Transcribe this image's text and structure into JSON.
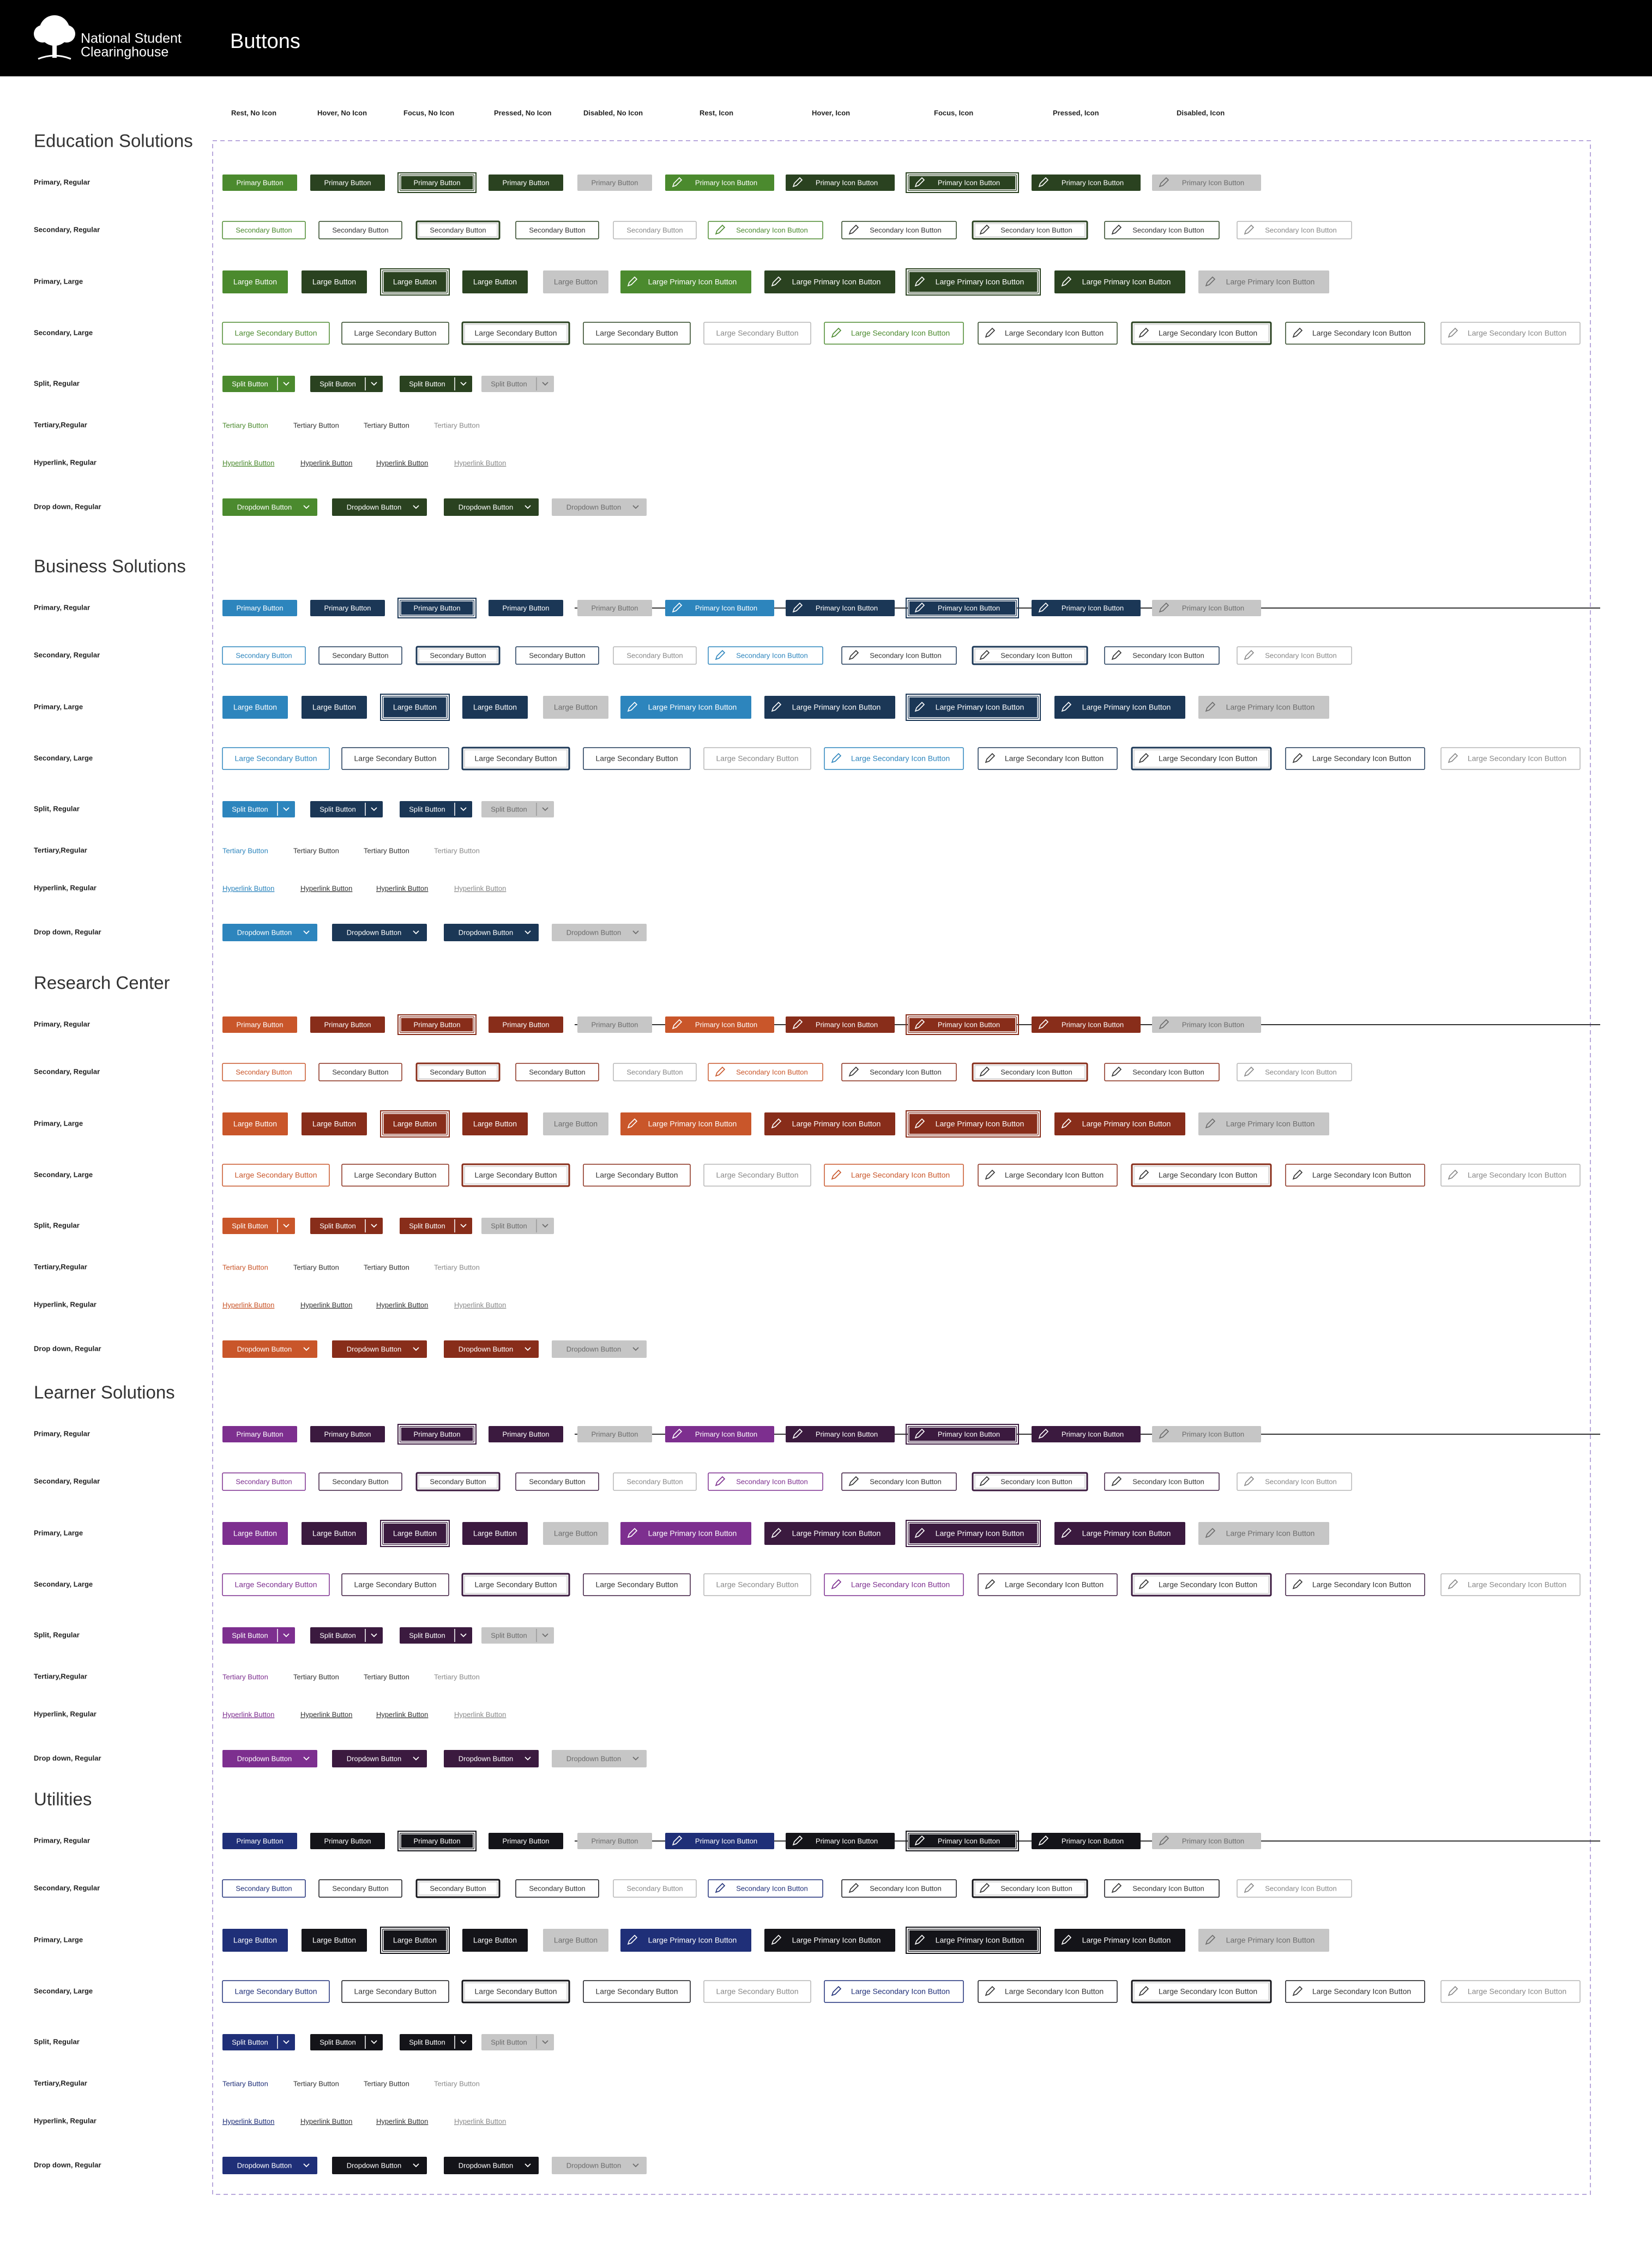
{
  "header": {
    "logo": [
      "National Student",
      "Clearinghouse"
    ],
    "title": "Buttons"
  },
  "columns": [
    "Rest, No Icon",
    "Hover, No Icon",
    "Focus,  No Icon",
    "Pressed, No Icon",
    "Disabled, No Icon",
    "Rest, Icon",
    "Hover, Icon",
    "Focus,  Icon",
    "Pressed,  Icon",
    "Disabled, Icon"
  ],
  "sections": [
    {
      "title": "Education Solutions",
      "colors": {
        "rest": "#4b8a2e",
        "dark": "#2a4220"
      },
      "rows": [
        {
          "label": "Primary, Regular",
          "buttons": [
            "Primary Button",
            "Primary Button",
            "Primary Button",
            "Primary Button",
            "Primary Button",
            "Primary Icon Button",
            "Primary Icon Button",
            "Primary Icon Button",
            "Primary Icon Button",
            "Primary Icon Button"
          ]
        },
        {
          "label": "Secondary, Regular",
          "buttons": [
            "Secondary Button",
            "Secondary Button",
            "Secondary Button",
            "Secondary Button",
            "Secondary Button",
            "Secondary Icon Button",
            "Secondary Icon Button",
            "Secondary Icon Button",
            "Secondary Icon Button",
            "Secondary Icon Button"
          ]
        },
        {
          "label": "Primary, Large",
          "buttons": [
            "Large Button",
            "Large Button",
            "Large Button",
            "Large Button",
            "Large Button",
            "Large Primary Icon Button",
            "Large Primary Icon Button",
            "Large Primary Icon Button",
            "Large Primary Icon Button",
            "Large Primary Icon Button"
          ]
        },
        {
          "label": "Secondary, Large",
          "buttons": [
            "Large Secondary Button",
            "Large Secondary Button",
            "Large Secondary Button",
            "Large Secondary Button",
            "Large Secondary Button",
            "Large Secondary Icon Button",
            "Large Secondary Icon Button",
            "Large Secondary Icon Button",
            "Large Secondary Icon Button",
            "Large Secondary Icon Button"
          ]
        },
        {
          "label": "Split, Regular",
          "buttons": [
            "Split Button",
            "Split Button",
            "Split Button",
            "Split Button"
          ]
        },
        {
          "label": "Tertiary,Regular",
          "buttons": [
            "Tertiary Button",
            "Tertiary Button",
            "Tertiary Button",
            "Tertiary Button"
          ]
        },
        {
          "label": "Hyperlink, Regular",
          "buttons": [
            "Hyperlink Button",
            "Hyperlink Button",
            "Hyperlink Button",
            "Hyperlink Button"
          ]
        },
        {
          "label": "Drop down, Regular",
          "buttons": [
            "Dropdown Button",
            "Dropdown Button",
            "Dropdown Button",
            "Dropdown Button"
          ]
        }
      ]
    },
    {
      "title": "Business Solutions",
      "colors": {
        "rest": "#2d85bd",
        "dark": "#1b3756"
      },
      "rows": [
        {
          "label": "Primary, Regular",
          "buttons": [
            "Primary Button",
            "Primary Button",
            "Primary Button",
            "Primary Button",
            "Primary Button",
            "Primary Icon Button",
            "Primary Icon Button",
            "Primary Icon Button",
            "Primary Icon Button",
            "Primary Icon Button"
          ]
        },
        {
          "label": "Secondary, Regular",
          "buttons": [
            "Secondary Button",
            "Secondary Button",
            "Secondary Button",
            "Secondary Button",
            "Secondary Button",
            "Secondary Icon Button",
            "Secondary Icon Button",
            "Secondary Icon Button",
            "Secondary Icon Button",
            "Secondary Icon Button"
          ]
        },
        {
          "label": "Primary, Large",
          "buttons": [
            "Large Button",
            "Large Button",
            "Large Button",
            "Large Button",
            "Large Button",
            "Large Primary Icon Button",
            "Large Primary Icon Button",
            "Large Primary Icon Button",
            "Large Primary Icon Button",
            "Large Primary Icon Button"
          ]
        },
        {
          "label": "Secondary, Large",
          "buttons": [
            "Large Secondary Button",
            "Large Secondary Button",
            "Large Secondary Button",
            "Large Secondary Button",
            "Large Secondary Button",
            "Large Secondary Icon Button",
            "Large Secondary Icon Button",
            "Large Secondary Icon Button",
            "Large Secondary Icon Button",
            "Large Secondary Icon Button"
          ]
        },
        {
          "label": "Split, Regular",
          "buttons": [
            "Split Button",
            "Split Button",
            "Split Button",
            "Split Button"
          ]
        },
        {
          "label": "Tertiary,Regular",
          "buttons": [
            "Tertiary Button",
            "Tertiary Button",
            "Tertiary Button",
            "Tertiary Button"
          ]
        },
        {
          "label": "Hyperlink, Regular",
          "buttons": [
            "Hyperlink Button",
            "Hyperlink Button",
            "Hyperlink Button",
            "Hyperlink Button"
          ]
        },
        {
          "label": "Drop down, Regular",
          "buttons": [
            "Dropdown Button",
            "Dropdown Button",
            "Dropdown Button",
            "Dropdown Button"
          ]
        }
      ]
    },
    {
      "title": "Research Center",
      "colors": {
        "rest": "#c9562a",
        "dark": "#882d1a"
      },
      "rows": [
        {
          "label": "Primary, Regular",
          "buttons": [
            "Primary Button",
            "Primary Button",
            "Primary Button",
            "Primary Button",
            "Primary Button",
            "Primary Icon Button",
            "Primary Icon Button",
            "Primary Icon Button",
            "Primary Icon Button",
            "Primary Icon Button"
          ]
        },
        {
          "label": "Secondary, Regular",
          "buttons": [
            "Secondary Button",
            "Secondary Button",
            "Secondary Button",
            "Secondary Button",
            "Secondary Button",
            "Secondary Icon Button",
            "Secondary Icon Button",
            "Secondary Icon Button",
            "Secondary Icon Button",
            "Secondary Icon Button"
          ]
        },
        {
          "label": "Primary, Large",
          "buttons": [
            "Large Button",
            "Large Button",
            "Large Button",
            "Large Button",
            "Large Button",
            "Large Primary Icon Button",
            "Large Primary Icon Button",
            "Large Primary Icon Button",
            "Large Primary Icon Button",
            "Large Primary Icon Button"
          ]
        },
        {
          "label": "Secondary, Large",
          "buttons": [
            "Large Secondary Button",
            "Large Secondary Button",
            "Large Secondary Button",
            "Large Secondary Button",
            "Large Secondary Button",
            "Large Secondary Icon Button",
            "Large Secondary Icon Button",
            "Large Secondary Icon Button",
            "Large Secondary Icon Button",
            "Large Secondary Icon Button"
          ]
        },
        {
          "label": "Split, Regular",
          "buttons": [
            "Split Button",
            "Split Button",
            "Split Button",
            "Split Button"
          ]
        },
        {
          "label": "Tertiary,Regular",
          "buttons": [
            "Tertiary Button",
            "Tertiary Button",
            "Tertiary Button",
            "Tertiary Button"
          ]
        },
        {
          "label": "Hyperlink, Regular",
          "buttons": [
            "Hyperlink Button",
            "Hyperlink Button",
            "Hyperlink Button",
            "Hyperlink Button"
          ]
        },
        {
          "label": "Drop down, Regular",
          "buttons": [
            "Dropdown Button",
            "Dropdown Button",
            "Dropdown Button",
            "Dropdown Button"
          ]
        }
      ]
    },
    {
      "title": "Learner Solutions",
      "colors": {
        "rest": "#7d2f8f",
        "dark": "#3b1a3f"
      },
      "rows": [
        {
          "label": "Primary, Regular",
          "buttons": [
            "Primary Button",
            "Primary Button",
            "Primary Button",
            "Primary Button",
            "Primary Button",
            "Primary Icon Button",
            "Primary Icon Button",
            "Primary Icon Button",
            "Primary Icon Button",
            "Primary Icon Button"
          ]
        },
        {
          "label": "Secondary, Regular",
          "buttons": [
            "Secondary Button",
            "Secondary Button",
            "Secondary Button",
            "Secondary Button",
            "Secondary Button",
            "Secondary Icon Button",
            "Secondary Icon Button",
            "Secondary Icon Button",
            "Secondary Icon Button",
            "Secondary Icon Button"
          ]
        },
        {
          "label": "Primary, Large",
          "buttons": [
            "Large Button",
            "Large Button",
            "Large Button",
            "Large Button",
            "Large Button",
            "Large Primary Icon Button",
            "Large Primary Icon Button",
            "Large Primary Icon Button",
            "Large Primary Icon Button",
            "Large Primary Icon Button"
          ]
        },
        {
          "label": "Secondary, Large",
          "buttons": [
            "Large Secondary Button",
            "Large Secondary Button",
            "Large Secondary Button",
            "Large Secondary Button",
            "Large Secondary Button",
            "Large Secondary Icon Button",
            "Large Secondary Icon Button",
            "Large Secondary Icon Button",
            "Large Secondary Icon Button",
            "Large Secondary Icon Button"
          ]
        },
        {
          "label": "Split, Regular",
          "buttons": [
            "Split Button",
            "Split Button",
            "Split Button",
            "Split Button"
          ]
        },
        {
          "label": "Tertiary,Regular",
          "buttons": [
            "Tertiary Button",
            "Tertiary Button",
            "Tertiary Button",
            "Tertiary Button"
          ]
        },
        {
          "label": "Hyperlink, Regular",
          "buttons": [
            "Hyperlink Button",
            "Hyperlink Button",
            "Hyperlink Button",
            "Hyperlink Button"
          ]
        },
        {
          "label": "Drop down, Regular",
          "buttons": [
            "Dropdown Button",
            "Dropdown Button",
            "Dropdown Button",
            "Dropdown Button"
          ]
        }
      ]
    },
    {
      "title": "Utilities",
      "colors": {
        "rest": "#1f2f78",
        "dark": "#141419"
      },
      "rows": [
        {
          "label": "Primary, Regular",
          "buttons": [
            "Primary Button",
            "Primary Button",
            "Primary Button",
            "Primary Button",
            "Primary Button",
            "Primary Icon Button",
            "Primary Icon Button",
            "Primary Icon Button",
            "Primary Icon Button",
            "Primary Icon Button"
          ]
        },
        {
          "label": "Secondary, Regular",
          "buttons": [
            "Secondary Button",
            "Secondary Button",
            "Secondary Button",
            "Secondary Button",
            "Secondary Button",
            "Secondary Icon Button",
            "Secondary Icon Button",
            "Secondary Icon Button",
            "Secondary Icon Button",
            "Secondary Icon Button"
          ]
        },
        {
          "label": "Primary, Large",
          "buttons": [
            "Large Button",
            "Large Button",
            "Large Button",
            "Large Button",
            "Large Button",
            "Large Primary Icon Button",
            "Large Primary Icon Button",
            "Large Primary Icon Button",
            "Large Primary Icon Button",
            "Large Primary Icon Button"
          ]
        },
        {
          "label": "Secondary, Large",
          "buttons": [
            "Large Secondary Button",
            "Large Secondary Button",
            "Large Secondary Button",
            "Large Secondary Button",
            "Large Secondary Button",
            "Large Secondary Icon Button",
            "Large Secondary Icon Button",
            "Large Secondary Icon Button",
            "Large Secondary Icon Button",
            "Large Secondary Icon Button"
          ]
        },
        {
          "label": "Split, Regular",
          "buttons": [
            "Split Button",
            "Split Button",
            "Split Button",
            "Split Button"
          ]
        },
        {
          "label": "Tertiary,Regular",
          "buttons": [
            "Tertiary Button",
            "Tertiary Button",
            "Tertiary Button",
            "Tertiary Button"
          ]
        },
        {
          "label": "Hyperlink, Regular",
          "buttons": [
            "Hyperlink Button",
            "Hyperlink Button",
            "Hyperlink Button",
            "Hyperlink Button"
          ]
        },
        {
          "label": "Drop down, Regular",
          "buttons": [
            "Dropdown Button",
            "Dropdown Button",
            "Dropdown Button",
            "Dropdown Button"
          ]
        }
      ]
    }
  ]
}
